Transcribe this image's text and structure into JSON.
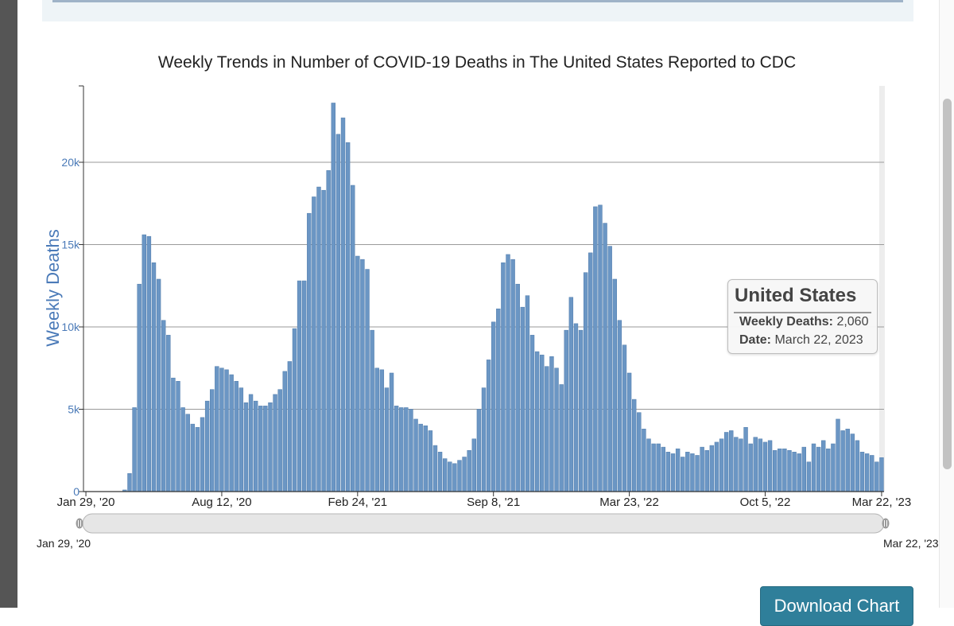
{
  "chart_data": {
    "type": "bar",
    "title": "Weekly Trends in Number of COVID-19 Deaths in The United States Reported to CDC",
    "xlabel": "",
    "ylabel": "Weekly Deaths",
    "ylim": [
      0,
      24500
    ],
    "yticks": [
      0,
      5000,
      10000,
      15000,
      20000
    ],
    "ytick_labels": [
      "0",
      "5k",
      "10k",
      "15k",
      "20k"
    ],
    "grid": true,
    "xtick_labels": [
      "Jan 29, '20",
      "Aug 12, '20",
      "Feb 24, '21",
      "Sep 8, '21",
      "Mar 23, '22",
      "Oct 5, '22",
      "Mar 22, '23"
    ],
    "xtick_week_index": [
      0,
      28,
      56,
      84,
      112,
      140,
      164
    ],
    "week_start": "Jan 29, '20",
    "week_end": "Mar 22, '23",
    "series": [
      {
        "name": "United States",
        "values": [
          0,
          0,
          0,
          0,
          0,
          0,
          0,
          0,
          100,
          1100,
          5100,
          12600,
          15600,
          15500,
          13900,
          12900,
          10400,
          9500,
          6900,
          6700,
          5100,
          4700,
          4100,
          3900,
          4500,
          5500,
          6200,
          7600,
          7500,
          7400,
          7100,
          6700,
          6300,
          5400,
          5900,
          5500,
          5200,
          5200,
          5400,
          5900,
          6200,
          7300,
          7900,
          9900,
          12800,
          12800,
          16900,
          17900,
          18500,
          18300,
          19500,
          23600,
          21700,
          22700,
          21200,
          18600,
          14300,
          14100,
          13500,
          9800,
          7500,
          7400,
          6300,
          7200,
          5200,
          5100,
          5100,
          5000,
          4400,
          4100,
          4000,
          3700,
          2800,
          2400,
          2000,
          1800,
          1700,
          1900,
          2100,
          2500,
          3200,
          5000,
          6300,
          8000,
          10300,
          11100,
          13900,
          14400,
          14100,
          12600,
          11200,
          11900,
          9500,
          8500,
          8300,
          7600,
          8200,
          7500,
          6500,
          9800,
          11800,
          10200,
          9800,
          13300,
          14500,
          17300,
          17400,
          16300,
          14900,
          12900,
          10400,
          8900,
          7200,
          5600,
          4800,
          3800,
          3200,
          2900,
          2900,
          2700,
          2400,
          2300,
          2600,
          2100,
          2400,
          2300,
          2200,
          2700,
          2500,
          2800,
          3000,
          3200,
          3600,
          3700,
          3300,
          3200,
          3900,
          2900,
          3300,
          3200,
          3000,
          3100,
          2500,
          2600,
          2600,
          2500,
          2400,
          2300,
          2700,
          1800,
          2900,
          2700,
          3100,
          2600,
          2900,
          4400,
          3700,
          3800,
          3500,
          3100,
          2400,
          2300,
          2200,
          1800,
          2060
        ]
      }
    ],
    "tooltip": {
      "title": "United States",
      "metric_label": "Weekly Deaths:",
      "metric_value": "2,060",
      "date_label": "Date:",
      "date_value": "March 22, 2023"
    },
    "navigator": {
      "start_label": "Jan 29, '20",
      "end_label": "Mar 22, '23"
    }
  },
  "ui": {
    "download_button_label": "Download Chart"
  },
  "colors": {
    "bar": "#6b96c4",
    "bar_stroke": "#4f7bab",
    "grid": "#9a9a9a",
    "axis_label": "#4a7ab8",
    "button": "#2f7f9a"
  }
}
